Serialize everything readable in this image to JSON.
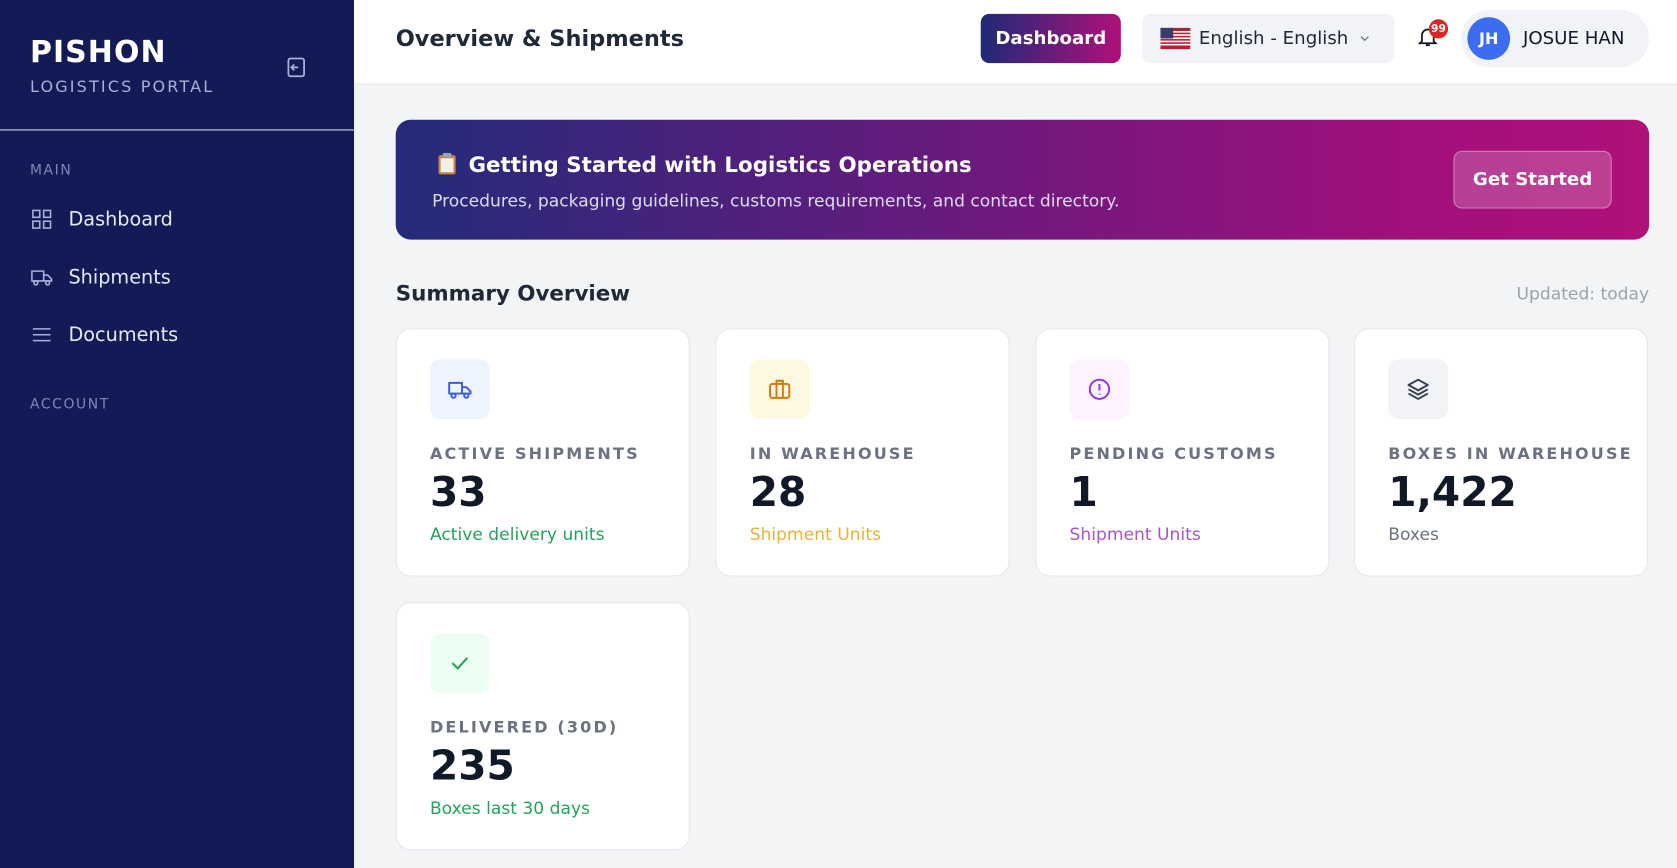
{
  "sidebar": {
    "brand": "PISHON",
    "brand_subtitle": "LOGISTICS PORTAL",
    "sections": [
      {
        "title": "MAIN",
        "items": [
          "Dashboard",
          "Shipments",
          "Documents"
        ]
      },
      {
        "title": "ACCOUNT",
        "items": []
      }
    ]
  },
  "header": {
    "title": "Overview & Shipments",
    "dashboard_button": "Dashboard",
    "language": "English - English",
    "notification_count": "99",
    "user_initials": "JH",
    "user_name": "JOSUE HAN"
  },
  "banner": {
    "title": "Getting Started with Logistics Operations",
    "description": "Procedures, packaging guidelines, customs requirements, and contact directory.",
    "button": "Get Started"
  },
  "summary": {
    "title": "Summary Overview",
    "updated": "Updated: today",
    "cards": [
      {
        "label": "ACTIVE SHIPMENTS",
        "value": "33",
        "caption": "Active delivery units"
      },
      {
        "label": "IN WAREHOUSE",
        "value": "28",
        "caption": "Shipment Units"
      },
      {
        "label": "PENDING CUSTOMS",
        "value": "1",
        "caption": "Shipment Units"
      },
      {
        "label": "BOXES IN WAREHOUSE",
        "value": "1,422",
        "caption": "Boxes"
      },
      {
        "label": "DELIVERED (30D)",
        "value": "235",
        "caption": "Boxes last 30 days"
      }
    ]
  }
}
